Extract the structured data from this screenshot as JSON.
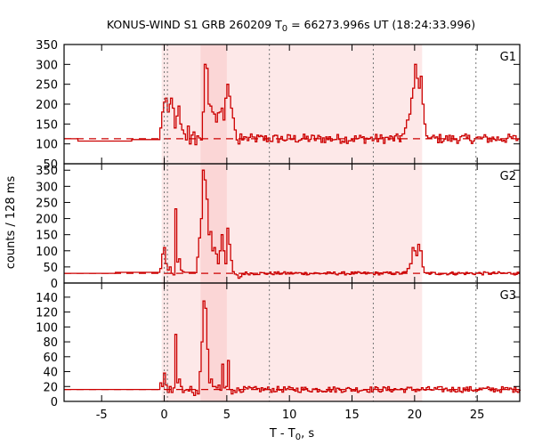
{
  "chart_data": {
    "type": "line",
    "title": "KONUS-WIND S1 GRB 260209 T0 = 66273.996s UT (18:24:33.996)",
    "title_parts": {
      "prefix": "KONUS-WIND S1 GRB 260209 T",
      "sub": "0",
      "suffix": " = 66273.996s UT (18:24:33.996)"
    },
    "xlabel": "T - T0, s",
    "xlabel_parts": {
      "prefix": "T - T",
      "sub": "0",
      "suffix": ", s"
    },
    "ylabel": "counts / 128 ms",
    "xlim": [
      -8.0,
      28.4
    ],
    "xticks": [
      -5,
      0,
      5,
      10,
      15,
      20,
      25
    ],
    "grid": false,
    "step_style": "histogram steps",
    "line_color": "#cc0000",
    "background_dashed_color": "#cc0000",
    "shaded_regions": [
      {
        "from": -0.2,
        "to": 20.6,
        "color": "#fde8e8",
        "label": "light interval"
      },
      {
        "from": 2.9,
        "to": 5.0,
        "color": "#fbd6d6",
        "label": "dark interval"
      }
    ],
    "vertical_dotted_lines": [
      0.0,
      0.256,
      8.4,
      16.7,
      24.9
    ],
    "panels": [
      {
        "name": "G1",
        "ylim": [
          50,
          350
        ],
        "yticks": [
          50,
          100,
          150,
          200,
          250,
          300,
          350
        ],
        "background": 113,
        "pre_trigger_steps": [
          [
            -8.0,
            113
          ],
          [
            -6.9,
            107
          ],
          [
            -3.9,
            107
          ],
          [
            -2.6,
            111
          ],
          [
            -0.35,
            111
          ]
        ],
        "key_points": [
          [
            -0.35,
            140
          ],
          [
            -0.2,
            180
          ],
          [
            -0.05,
            205
          ],
          [
            0.1,
            215
          ],
          [
            0.25,
            180
          ],
          [
            0.4,
            200
          ],
          [
            0.5,
            215
          ],
          [
            0.65,
            190
          ],
          [
            0.8,
            140
          ],
          [
            0.95,
            170
          ],
          [
            1.1,
            195
          ],
          [
            1.25,
            150
          ],
          [
            1.4,
            135
          ],
          [
            1.55,
            125
          ],
          [
            1.7,
            110
          ],
          [
            1.85,
            145
          ],
          [
            2.0,
            100
          ],
          [
            2.15,
            122
          ],
          [
            2.3,
            130
          ],
          [
            2.45,
            98
          ],
          [
            2.6,
            120
          ],
          [
            2.75,
            115
          ],
          [
            2.9,
            110
          ],
          [
            3.05,
            180
          ],
          [
            3.2,
            300
          ],
          [
            3.35,
            290
          ],
          [
            3.5,
            200
          ],
          [
            3.65,
            195
          ],
          [
            3.8,
            180
          ],
          [
            3.95,
            175
          ],
          [
            4.1,
            155
          ],
          [
            4.25,
            178
          ],
          [
            4.4,
            180
          ],
          [
            4.55,
            190
          ],
          [
            4.7,
            160
          ],
          [
            4.85,
            215
          ],
          [
            5.0,
            250
          ],
          [
            5.15,
            220
          ],
          [
            5.3,
            190
          ],
          [
            5.45,
            165
          ],
          [
            5.6,
            135
          ],
          [
            5.75,
            110
          ],
          [
            5.9,
            100
          ],
          [
            6.05,
            125
          ],
          [
            6.2,
            110
          ],
          [
            6.35,
            118
          ],
          [
            6.5,
            108
          ]
        ],
        "flare_points": [
          [
            18.8,
            120
          ],
          [
            19.0,
            125
          ],
          [
            19.2,
            140
          ],
          [
            19.35,
            160
          ],
          [
            19.55,
            175
          ],
          [
            19.7,
            215
          ],
          [
            19.85,
            240
          ],
          [
            20.0,
            300
          ],
          [
            20.15,
            265
          ],
          [
            20.3,
            240
          ],
          [
            20.45,
            270
          ],
          [
            20.6,
            200
          ],
          [
            20.75,
            150
          ],
          [
            20.9,
            120
          ],
          [
            21.05,
            115
          ],
          [
            21.2,
            108
          ]
        ],
        "noise_amp": 12,
        "label": "G1"
      },
      {
        "name": "G2",
        "ylim": [
          0,
          370
        ],
        "yticks": [
          0,
          50,
          100,
          150,
          200,
          250,
          300,
          350
        ],
        "background": 30,
        "pre_trigger_steps": [
          [
            -8.0,
            30
          ],
          [
            -3.9,
            33
          ],
          [
            -0.35,
            33
          ]
        ],
        "key_points": [
          [
            -0.35,
            45
          ],
          [
            -0.2,
            90
          ],
          [
            -0.05,
            110
          ],
          [
            0.1,
            60
          ],
          [
            0.25,
            40
          ],
          [
            0.4,
            50
          ],
          [
            0.55,
            30
          ],
          [
            0.7,
            25
          ],
          [
            0.85,
            230
          ],
          [
            1.0,
            65
          ],
          [
            1.15,
            75
          ],
          [
            1.3,
            40
          ],
          [
            1.45,
            35
          ],
          [
            1.6,
            33
          ],
          [
            2.45,
            32
          ],
          [
            2.6,
            80
          ],
          [
            2.75,
            140
          ],
          [
            2.9,
            200
          ],
          [
            3.05,
            350
          ],
          [
            3.2,
            320
          ],
          [
            3.35,
            260
          ],
          [
            3.5,
            150
          ],
          [
            3.65,
            160
          ],
          [
            3.8,
            100
          ],
          [
            3.95,
            110
          ],
          [
            4.1,
            90
          ],
          [
            4.25,
            60
          ],
          [
            4.4,
            100
          ],
          [
            4.55,
            150
          ],
          [
            4.7,
            100
          ],
          [
            4.85,
            60
          ],
          [
            5.0,
            170
          ],
          [
            5.15,
            120
          ],
          [
            5.3,
            70
          ],
          [
            5.45,
            35
          ],
          [
            5.6,
            28
          ],
          [
            5.75,
            25
          ],
          [
            5.9,
            15
          ],
          [
            6.05,
            20
          ],
          [
            6.2,
            28
          ],
          [
            6.35,
            30
          ]
        ],
        "flare_points": [
          [
            19.2,
            35
          ],
          [
            19.4,
            45
          ],
          [
            19.6,
            60
          ],
          [
            19.8,
            110
          ],
          [
            19.95,
            100
          ],
          [
            20.1,
            85
          ],
          [
            20.25,
            120
          ],
          [
            20.4,
            100
          ],
          [
            20.6,
            50
          ],
          [
            20.75,
            32
          ],
          [
            20.9,
            30
          ]
        ],
        "noise_amp": 5,
        "label": "G2"
      },
      {
        "name": "G3",
        "ylim": [
          0,
          159
        ],
        "yticks": [
          0,
          20,
          40,
          60,
          80,
          100,
          120,
          140
        ],
        "background": 16,
        "pre_trigger_steps": [
          [
            -8.0,
            16
          ],
          [
            -0.35,
            16
          ]
        ],
        "key_points": [
          [
            -0.35,
            25
          ],
          [
            -0.2,
            20
          ],
          [
            -0.05,
            38
          ],
          [
            0.1,
            22
          ],
          [
            0.25,
            12
          ],
          [
            0.4,
            20
          ],
          [
            0.55,
            12
          ],
          [
            0.7,
            18
          ],
          [
            0.85,
            90
          ],
          [
            1.0,
            25
          ],
          [
            1.15,
            30
          ],
          [
            1.3,
            20
          ],
          [
            1.45,
            12
          ],
          [
            1.6,
            15
          ],
          [
            1.75,
            16
          ],
          [
            1.9,
            14
          ],
          [
            2.05,
            20
          ],
          [
            2.2,
            12
          ],
          [
            2.35,
            8
          ],
          [
            2.5,
            15
          ],
          [
            2.65,
            10
          ],
          [
            2.8,
            40
          ],
          [
            2.95,
            80
          ],
          [
            3.1,
            135
          ],
          [
            3.25,
            125
          ],
          [
            3.4,
            70
          ],
          [
            3.55,
            25
          ],
          [
            3.7,
            30
          ],
          [
            3.85,
            20
          ],
          [
            4.0,
            20
          ],
          [
            4.15,
            18
          ],
          [
            4.3,
            22
          ],
          [
            4.45,
            15
          ],
          [
            4.6,
            50
          ],
          [
            4.75,
            18
          ],
          [
            4.9,
            20
          ],
          [
            5.05,
            55
          ],
          [
            5.2,
            16
          ],
          [
            5.35,
            10
          ],
          [
            5.5,
            15
          ],
          [
            5.65,
            12
          ],
          [
            5.8,
            18
          ],
          [
            5.95,
            14
          ]
        ],
        "flare_points": [],
        "noise_amp": 4,
        "label": "G3"
      }
    ]
  }
}
